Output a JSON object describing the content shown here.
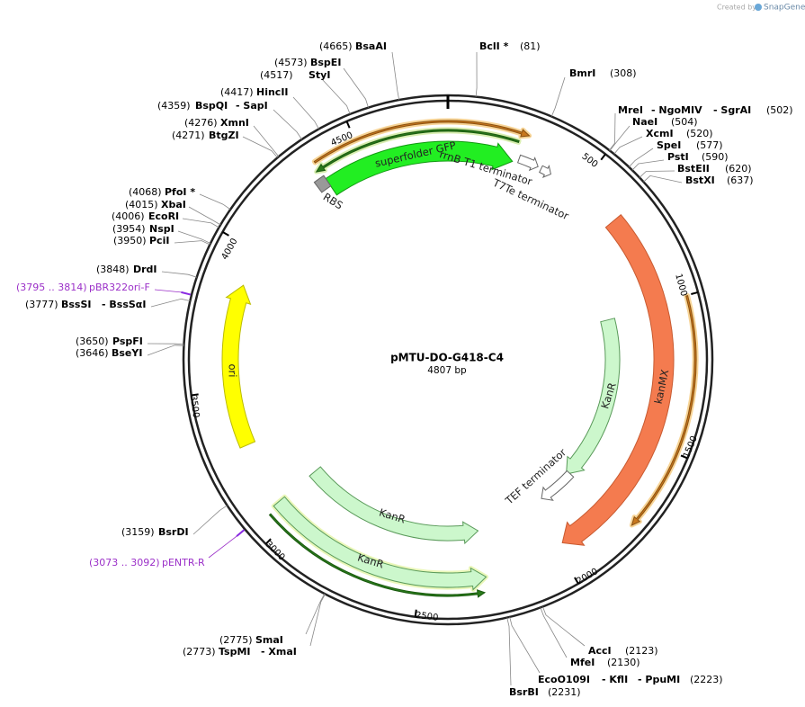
{
  "header": {
    "created_by": "Created by",
    "brand": "SnapGene"
  },
  "plasmid": {
    "name": "pMTU-DO-G418-C4",
    "length": "4807 bp"
  },
  "ticks": [
    500,
    1000,
    1500,
    2000,
    2500,
    3000,
    3500,
    4000,
    4500
  ],
  "sites": [
    {
      "position": "(4665)",
      "names": [
        "BsaAI"
      ]
    },
    {
      "position": "(81)",
      "names": [
        "BclI *"
      ]
    },
    {
      "position": "(308)",
      "names": [
        "BmrI"
      ]
    },
    {
      "position": "(4573)",
      "names": [
        "BspEI"
      ]
    },
    {
      "position": "(4517)",
      "names": [
        "StyI"
      ]
    },
    {
      "position": "(4417)",
      "names": [
        "HincII"
      ]
    },
    {
      "position": "(4359)",
      "names": [
        "BspQI",
        "- SapI"
      ]
    },
    {
      "position": "(4276)",
      "names": [
        "XmnI"
      ]
    },
    {
      "position": "(4271)",
      "names": [
        "BtgZI"
      ]
    },
    {
      "position": "(502)",
      "names": [
        "MreI",
        "- NgoMIV",
        "- SgrAI"
      ]
    },
    {
      "position": "(504)",
      "names": [
        "NaeI"
      ]
    },
    {
      "position": "(520)",
      "names": [
        "XcmI"
      ]
    },
    {
      "position": "(577)",
      "names": [
        "SpeI"
      ]
    },
    {
      "position": "(590)",
      "names": [
        "PstI"
      ]
    },
    {
      "position": "(620)",
      "names": [
        "BstEII"
      ]
    },
    {
      "position": "(637)",
      "names": [
        "BstXI"
      ]
    },
    {
      "position": "(4068)",
      "names": [
        "PfoI *"
      ]
    },
    {
      "position": "(4015)",
      "names": [
        "XbaI"
      ]
    },
    {
      "position": "(4006)",
      "names": [
        "EcoRI"
      ]
    },
    {
      "position": "(3954)",
      "names": [
        "NspI"
      ]
    },
    {
      "position": "(3950)",
      "names": [
        "PciI"
      ]
    },
    {
      "position": "(3848)",
      "names": [
        "DrdI"
      ]
    },
    {
      "position": "(3777)",
      "names": [
        "BssSI",
        "- BssSαI"
      ]
    },
    {
      "position": "(3650)",
      "names": [
        "PspFI"
      ]
    },
    {
      "position": "(3646)",
      "names": [
        "BseYI"
      ]
    },
    {
      "position": "(3159)",
      "names": [
        "BsrDI"
      ]
    },
    {
      "position": "(2775)",
      "names": [
        "SmaI"
      ]
    },
    {
      "position": "(2773)",
      "names": [
        "TspMI",
        "- XmaI"
      ]
    },
    {
      "position": "(2123)",
      "names": [
        "AccI"
      ]
    },
    {
      "position": "(2130)",
      "names": [
        "MfeI"
      ]
    },
    {
      "position": "(2223)",
      "names": [
        "EcoO109I",
        "- KflI",
        "- PpuMI"
      ]
    },
    {
      "position": "(2231)",
      "names": [
        "BsrBI"
      ]
    }
  ],
  "primers": [
    {
      "range": "(3795 .. 3814)",
      "name": "pBR322ori-F"
    },
    {
      "range": "(3073 .. 3092)",
      "name": "pENTR-R"
    }
  ],
  "features": [
    {
      "label": "superfolder GFP"
    },
    {
      "label": "RBS"
    },
    {
      "label": "rrnB T1 terminator"
    },
    {
      "label": "T7Te terminator"
    },
    {
      "label": "kanMX"
    },
    {
      "label": "KanR"
    },
    {
      "label": "KanR"
    },
    {
      "label": "KanR"
    },
    {
      "label": "TEF terminator"
    },
    {
      "label": "ori"
    }
  ]
}
